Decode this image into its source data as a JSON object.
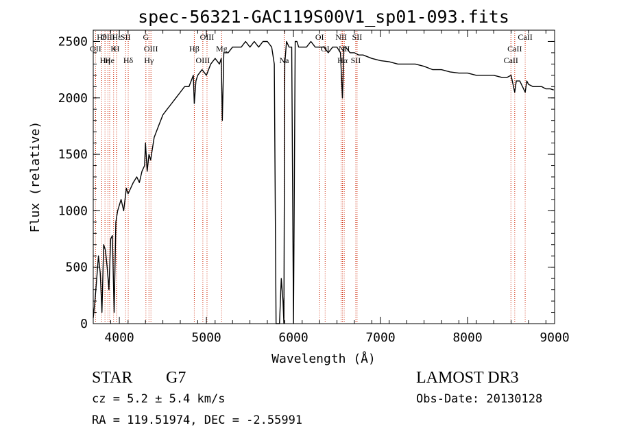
{
  "chart_data": {
    "type": "line",
    "title": "spec-56321-GAC119S00V1_sp01-093.fits",
    "xlabel": "Wavelength (Å)",
    "ylabel": "Flux (relative)",
    "xlim": [
      3700,
      9000
    ],
    "ylim": [
      0,
      2600
    ],
    "x_ticks": [
      4000,
      5000,
      6000,
      7000,
      8000,
      9000
    ],
    "x_tick_labels": [
      "4000",
      "5000",
      "6000",
      "7000",
      "8000",
      "9000"
    ],
    "y_ticks": [
      0,
      500,
      1000,
      1500,
      2000,
      2500
    ],
    "y_tick_labels": [
      "0",
      "500",
      "1000",
      "1500",
      "2000",
      "2500"
    ],
    "series": [
      {
        "name": "spectrum",
        "x": [
          3700,
          3720,
          3740,
          3760,
          3780,
          3800,
          3820,
          3840,
          3860,
          3880,
          3900,
          3920,
          3940,
          3960,
          3980,
          4000,
          4020,
          4050,
          4080,
          4100,
          4130,
          4160,
          4200,
          4230,
          4260,
          4290,
          4300,
          4320,
          4340,
          4360,
          4380,
          4400,
          4450,
          4500,
          4550,
          4600,
          4650,
          4700,
          4750,
          4800,
          4850,
          4861,
          4880,
          4900,
          4950,
          5000,
          5050,
          5100,
          5150,
          5170,
          5183,
          5200,
          5250,
          5300,
          5350,
          5400,
          5450,
          5500,
          5550,
          5600,
          5650,
          5700,
          5750,
          5780,
          5800,
          5820,
          5840,
          5860,
          5880,
          5890,
          5900,
          5920,
          5950,
          5980,
          6000,
          6020,
          6040,
          6060,
          6100,
          6150,
          6200,
          6250,
          6300,
          6350,
          6400,
          6450,
          6500,
          6540,
          6563,
          6580,
          6600,
          6650,
          6700,
          6750,
          6800,
          6900,
          7000,
          7100,
          7200,
          7300,
          7400,
          7500,
          7600,
          7700,
          7800,
          7900,
          8000,
          8100,
          8200,
          8300,
          8400,
          8450,
          8500,
          8542,
          8560,
          8600,
          8662,
          8680,
          8700,
          8750,
          8800,
          8850,
          8900,
          8950,
          8990
        ],
        "y": [
          50,
          200,
          400,
          600,
          450,
          100,
          700,
          650,
          500,
          300,
          750,
          780,
          100,
          900,
          1000,
          1050,
          1100,
          1000,
          1200,
          1150,
          1200,
          1250,
          1300,
          1250,
          1350,
          1400,
          1600,
          1350,
          1500,
          1450,
          1550,
          1650,
          1750,
          1850,
          1900,
          1950,
          2000,
          2050,
          2100,
          2100,
          2200,
          1950,
          2150,
          2200,
          2250,
          2200,
          2300,
          2350,
          2300,
          2350,
          1800,
          2400,
          2400,
          2450,
          2450,
          2450,
          2500,
          2450,
          2500,
          2450,
          2500,
          2500,
          2450,
          2300,
          0,
          0,
          0,
          400,
          200,
          0,
          2300,
          2500,
          2450,
          2450,
          0,
          2500,
          2500,
          2450,
          2450,
          2450,
          2500,
          2450,
          2450,
          2450,
          2400,
          2450,
          2450,
          2400,
          2000,
          2450,
          2450,
          2400,
          2400,
          2380,
          2380,
          2350,
          2330,
          2320,
          2300,
          2300,
          2300,
          2280,
          2250,
          2250,
          2230,
          2220,
          2220,
          2200,
          2200,
          2200,
          2180,
          2180,
          2200,
          2050,
          2150,
          2150,
          2050,
          2150,
          2120,
          2100,
          2100,
          2100,
          2080,
          2080,
          2070
        ]
      }
    ],
    "line_annotations": [
      {
        "label": "Hθ",
        "x": 3798
      },
      {
        "label": "OII",
        "x": 3727
      },
      {
        "label": "Hη",
        "x": 3835
      },
      {
        "label": "OIII",
        "x": 3869
      },
      {
        "label": "K",
        "x": 3934
      },
      {
        "label": "He",
        "x": 3889
      },
      {
        "label": "Hε",
        "x": 3970
      },
      {
        "label": "H",
        "x": 3968
      },
      {
        "label": "Hδ",
        "x": 4102
      },
      {
        "label": "SII",
        "x": 4072
      },
      {
        "label": "OIII",
        "x": 4363
      },
      {
        "label": "Hγ",
        "x": 4340
      },
      {
        "label": "G",
        "x": 4305
      },
      {
        "label": "Hβ",
        "x": 4861
      },
      {
        "label": "OIII",
        "x": 4959
      },
      {
        "label": "OIII",
        "x": 5007
      },
      {
        "label": "Mg",
        "x": 5175
      },
      {
        "label": "Na",
        "x": 5893
      },
      {
        "label": "OI",
        "x": 6300
      },
      {
        "label": "OI",
        "x": 6364
      },
      {
        "label": "Hα",
        "x": 6563
      },
      {
        "label": "NII",
        "x": 6548
      },
      {
        "label": "NII",
        "x": 6583
      },
      {
        "label": "SII",
        "x": 6716
      },
      {
        "label": "SII",
        "x": 6731
      },
      {
        "label": "CaII",
        "x": 8542
      },
      {
        "label": "CaII",
        "x": 8498
      },
      {
        "label": "CaII",
        "x": 8662
      }
    ]
  },
  "info": {
    "class_label": "STAR",
    "subclass_label": "G7",
    "cz_text": "cz = 5.2 ± 5.4 km/s",
    "radec_text": "RA = 119.51974, DEC =  -2.55991",
    "survey_label": "LAMOST DR3",
    "obs_date_text": "Obs-Date: 20130128"
  },
  "colors": {
    "line": "#000000",
    "marker": "#cc2200",
    "background": "#ffffff"
  }
}
